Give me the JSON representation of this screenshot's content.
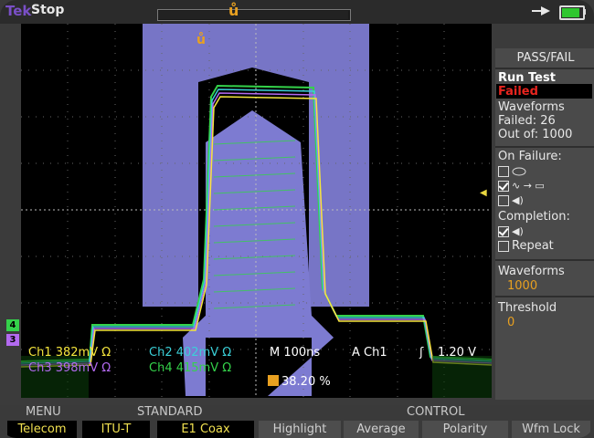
{
  "header": {
    "logo": "Tek",
    "run_state": "Stop"
  },
  "panel": {
    "title": "PASS/FAIL",
    "run_test": "Run Test",
    "status": "Failed",
    "waveforms_failed_label": "Waveforms",
    "failed_count": "Failed: 26",
    "out_of": "Out of: 1000",
    "on_failure": "On Failure:",
    "completion": "Completion:",
    "repeat": "Repeat",
    "waveforms_label": "Waveforms",
    "waveforms_value": "1000",
    "threshold_label": "Threshold",
    "threshold_value": "0"
  },
  "readouts": {
    "ch1": "Ch1  382mV Ω",
    "ch2": "Ch2  402mV Ω",
    "ch3": "Ch3  398mV Ω",
    "ch4": "Ch4  415mV Ω",
    "timebase": "M 100ns",
    "trigger_source": "A  Ch1",
    "trigger_level": "1.20 V",
    "trigger_position": "38.20 %"
  },
  "channel_markers": [
    "4",
    "3"
  ],
  "bottom": {
    "menu_label": "MENU",
    "standard_label": "STANDARD",
    "control_label": "CONTROL",
    "menu_value": "Telecom",
    "standard_value": "ITU-T",
    "mask_value": "E1 Coax",
    "buttons": [
      "Highlight",
      "Average",
      "Polarity",
      "Wfm Lock"
    ]
  },
  "colors": {
    "mask": "#7d7bd1",
    "ch1": "#f5e63c",
    "ch2": "#3ad0d8",
    "ch3": "#b36af0",
    "ch4": "#34d24a",
    "trigger": "#e8a020",
    "failed_text": "#e8251f"
  }
}
